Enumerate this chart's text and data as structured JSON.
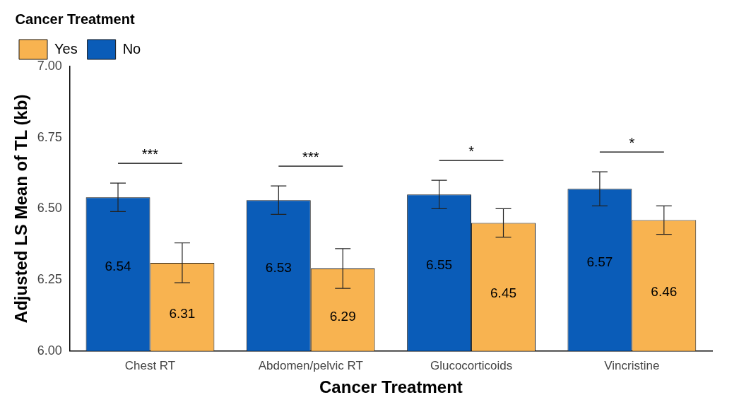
{
  "chart_data": {
    "type": "bar",
    "xlabel": "Cancer Treatment",
    "ylabel": "Adjusted LS Mean of TL (kb)",
    "legend_title": "Cancer Treatment",
    "legend": "top left",
    "categories": [
      "Chest RT",
      "Abdomen/pelvic RT",
      "Glucocorticoids",
      "Vincristine"
    ],
    "series": [
      {
        "name": "No",
        "color": "#0a5cb8",
        "values": [
          6.54,
          6.53,
          6.55,
          6.57
        ],
        "errors": [
          0.05,
          0.05,
          0.05,
          0.06
        ]
      },
      {
        "name": "Yes",
        "color": "#f8b350",
        "values": [
          6.31,
          6.29,
          6.45,
          6.46
        ],
        "errors": [
          0.07,
          0.07,
          0.05,
          0.05
        ]
      }
    ],
    "ylim": [
      6,
      7
    ],
    "yticks": [
      {
        "value": 6,
        "label": "6.00"
      },
      {
        "value": 6.25,
        "label": "6.25"
      },
      {
        "value": 6.5,
        "label": "6.50"
      },
      {
        "value": 6.75,
        "label": "6.75"
      },
      {
        "value": 7,
        "label": "7.00"
      }
    ],
    "grid": false,
    "data_labels": true,
    "annotations": [
      "***",
      "***",
      "*",
      "*"
    ]
  }
}
